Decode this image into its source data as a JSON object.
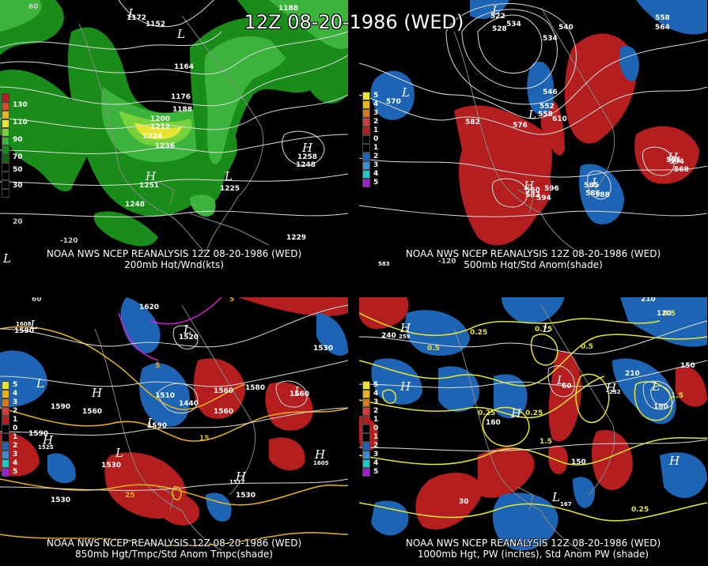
{
  "title": "12Z 08-20-1986 (WED)",
  "colors": {
    "green1": "#1a8c1a",
    "green2": "#3cb43c",
    "green3": "#78d23c",
    "yellow": "#e6e632",
    "red": "#b41e1e",
    "blue": "#1e64b4",
    "gold": "#e6b41e",
    "magenta": "#d21ed2"
  },
  "panels": [
    {
      "caption_line1": "NOAA NWS NCEP REANALYSIS 12Z 08-20-1986 (WED)",
      "caption_line2": "200mb Hgt/Wnd(kts)",
      "legend": [
        "130",
        "110",
        "90",
        "70",
        "50",
        "30"
      ],
      "contour_labels": [
        "1152",
        "1172",
        "1188",
        "1164",
        "1176",
        "1188",
        "1200",
        "1212",
        "1224",
        "1236",
        "1248",
        "1251",
        "1248",
        "1225",
        "1258",
        "1229"
      ],
      "centers": [
        "L",
        "H",
        "L",
        "L",
        "H",
        "L",
        "H"
      ],
      "lat_labels": [
        "60",
        "20"
      ],
      "lon_labels": [
        "-120"
      ]
    },
    {
      "caption_line1": "NOAA NWS NCEP REANALYSIS 12Z 08-20-1986 (WED)",
      "caption_line2": "500mb Hgt/Std Anom(shade)",
      "legend": [
        "5",
        "4",
        "3",
        "2",
        "1",
        "0",
        "1",
        "2",
        "3",
        "4",
        "5"
      ],
      "contour_labels": [
        "522",
        "528",
        "534",
        "534",
        "540",
        "546",
        "552",
        "558",
        "564",
        "570",
        "576",
        "582",
        "588",
        "594",
        "596",
        "582",
        "586",
        "610",
        "558",
        "595",
        "568",
        "585",
        "594",
        "583",
        "560"
      ],
      "centers": [
        "L",
        "L",
        "L",
        "H",
        "L",
        "H"
      ],
      "lon_labels": [
        "-120"
      ]
    },
    {
      "caption_line1": "NOAA NWS NCEP REANALYSIS 12Z 08-20-1986 (WED)",
      "caption_line2": "850mb Hgt/Tmpc/Std Anom Tmpc(shade)",
      "legend": [
        "5",
        "4",
        "3",
        "2",
        "1",
        "0",
        "1",
        "2",
        "3",
        "4",
        "5"
      ],
      "contour_labels": [
        "1590",
        "1608",
        "1620",
        "1560",
        "1530",
        "1590",
        "1560",
        "1590",
        "1525",
        "1530",
        "1560",
        "1530",
        "1605",
        "1512",
        "1530",
        "25",
        "15",
        "5",
        "5",
        "1510",
        "1440",
        "1520",
        "1580",
        "1590",
        "1560"
      ],
      "centers": [
        "L",
        "L",
        "H",
        "H",
        "L",
        "L",
        "L",
        "H",
        "L",
        "H"
      ],
      "lat_labels": [
        "60"
      ]
    },
    {
      "caption_line1": "NOAA NWS NCEP REANALYSIS 12Z 08-20-1986 (WED)",
      "caption_line2": "1000mb Hgt, PW (inches), Std Anom PW (shade)",
      "legend": [
        "5",
        "4",
        "3",
        "2",
        "1",
        "0",
        "1",
        "2",
        "3",
        "4",
        "5"
      ],
      "contour_labels": [
        "240",
        "259",
        "0.5",
        "0.25",
        "0.5",
        "0.75",
        "210",
        "120",
        "150",
        "180",
        "0.25",
        "0.25",
        "1.5",
        "150",
        "167",
        "160",
        "210",
        "232",
        "1.5",
        "60",
        "30",
        "0.5",
        "0.25"
      ],
      "centers": [
        "H",
        "H",
        "L",
        "L",
        "H",
        "H",
        "L",
        "L",
        "H"
      ]
    }
  ]
}
